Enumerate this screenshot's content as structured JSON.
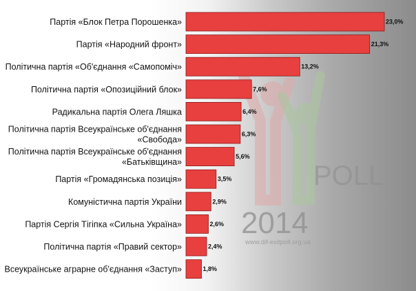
{
  "chart_data": {
    "type": "bar",
    "orientation": "horizontal",
    "categories": [
      [
        "Партія «Блок Петра Порошенка»"
      ],
      [
        "Партія «Народний фронт»"
      ],
      [
        "Політична партія «Об'єднання «Самопоміч»"
      ],
      [
        "Політична партія «Опозиційний блок»"
      ],
      [
        "Радикальна партія Олега Ляшка"
      ],
      [
        "Політична партія Всеукраїнське об'єднання",
        "«Свобода»"
      ],
      [
        "Політична партія Всеукраїнське об'єднання",
        "«Батьківщина»"
      ],
      [
        "Партія «Громадянська позиція»"
      ],
      [
        "Комуністична партія України"
      ],
      [
        "Партія Сергія Тігіпка «Сильна Україна»"
      ],
      [
        "Політична партія «Правий сектор»"
      ],
      [
        "Всеукраїнське аграрне об'єднання «Заступ»"
      ]
    ],
    "values": [
      23.0,
      21.3,
      13.2,
      7.6,
      6.4,
      6.3,
      5.6,
      3.5,
      2.9,
      2.6,
      2.4,
      1.8
    ],
    "value_labels": [
      "23,0%",
      "21,3%",
      "13,2%",
      "7,6%",
      "6,4%",
      "6,3%",
      "5,6%",
      "3,5%",
      "2,9%",
      "2,6%",
      "2,4%",
      "1,8%"
    ],
    "xlim": [
      0,
      23.0
    ],
    "grid": false,
    "legend": "none",
    "bar_color": "#e8403f",
    "bar_stroke": "#8b1a1a"
  },
  "watermark": {
    "year": "2014",
    "word": "POLL",
    "url": "www.dif-exitpoll.org.ua",
    "colors": {
      "figure_red": "#e0a8a8",
      "figure_green": "#a9c79d",
      "figure_grey": "#9a9a9a"
    }
  }
}
